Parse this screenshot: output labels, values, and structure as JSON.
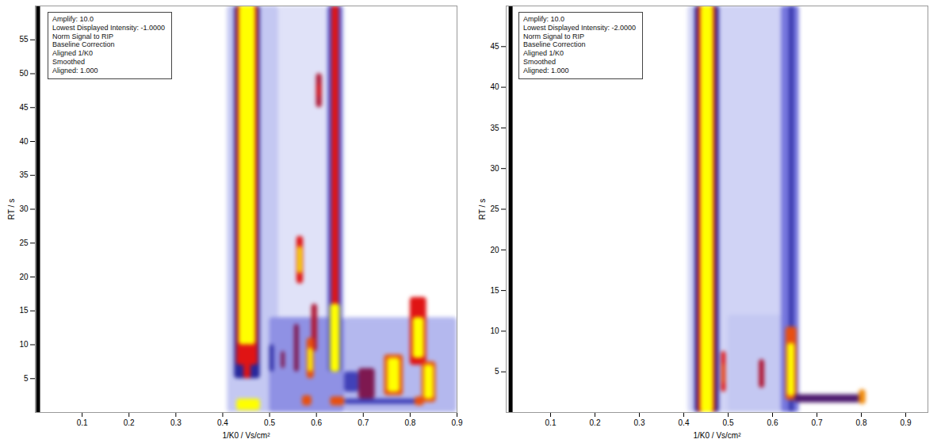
{
  "chart_data": [
    {
      "type": "heatmap",
      "x_label": "1/K0 / Vs/cm²",
      "y_label": "RT / s",
      "xlim": [
        0,
        0.9
      ],
      "xticks": [
        0.1,
        0.2,
        0.3,
        0.4,
        0.5,
        0.6,
        0.7,
        0.8,
        0.9
      ],
      "ylim": [
        0,
        60
      ],
      "yticks": [
        5,
        10,
        15,
        20,
        25,
        30,
        35,
        40,
        45,
        50,
        55
      ],
      "zlim": [
        0,
        1
      ],
      "annotation": [
        "Amplify: 10.0",
        "Lowest Displayed Intensity: -1.0000",
        "Norm Signal to RIP",
        "Baseline Correction",
        "Aligned 1/K0",
        "Smoothed",
        "Aligned: 1.000"
      ],
      "vlines": [
        {
          "x": 0.006,
          "color": "#000000"
        }
      ],
      "cells": [
        {
          "x0": 0.41,
          "x1": 0.52,
          "y0": 0,
          "y1": 60,
          "value": 0.15
        },
        {
          "x0": 0.52,
          "x1": 0.62,
          "y0": 0,
          "y1": 60,
          "value": 0.08
        },
        {
          "x0": 0.62,
          "x1": 0.66,
          "y0": 0,
          "y1": 60,
          "value": 0.1
        },
        {
          "x0": 0.66,
          "x1": 0.9,
          "y0": 0,
          "y1": 14,
          "value": 0.18
        },
        {
          "x0": 0.5,
          "x1": 0.66,
          "y0": 0,
          "y1": 14,
          "value": 0.25
        },
        {
          "x0": 0.425,
          "x1": 0.48,
          "y0": 5,
          "y1": 60,
          "value": 0.55
        },
        {
          "x0": 0.43,
          "x1": 0.475,
          "y0": 7,
          "y1": 60,
          "value": 0.8
        },
        {
          "x0": 0.435,
          "x1": 0.47,
          "y0": 10,
          "y1": 60,
          "value": 1
        },
        {
          "x0": 0.445,
          "x1": 0.46,
          "y0": 5,
          "y1": 10,
          "value": 0.8
        },
        {
          "x0": 0.43,
          "x1": 0.48,
          "y0": 0.3,
          "y1": 2,
          "value": 1
        },
        {
          "x0": 0.625,
          "x1": 0.655,
          "y0": 6,
          "y1": 60,
          "value": 0.4
        },
        {
          "x0": 0.633,
          "x1": 0.648,
          "y0": 6,
          "y1": 60,
          "value": 0.8
        },
        {
          "x0": 0.63,
          "x1": 0.65,
          "y0": 6,
          "y1": 16,
          "value": 1
        },
        {
          "x0": 0.6,
          "x1": 0.612,
          "y0": 45,
          "y1": 50,
          "value": 0.75
        },
        {
          "x0": 0.603,
          "x1": 0.609,
          "y0": 46.5,
          "y1": 48.5,
          "value": 0.8
        },
        {
          "x0": 0.558,
          "x1": 0.572,
          "y0": 19,
          "y1": 26,
          "value": 0.8
        },
        {
          "x0": 0.561,
          "x1": 0.569,
          "y0": 20.5,
          "y1": 24.5,
          "value": 1
        },
        {
          "x0": 0.59,
          "x1": 0.602,
          "y0": 9,
          "y1": 16,
          "value": 0.75
        },
        {
          "x0": 0.58,
          "x1": 0.595,
          "y0": 5,
          "y1": 11,
          "value": 0.85
        },
        {
          "x0": 0.583,
          "x1": 0.592,
          "y0": 6,
          "y1": 9.5,
          "value": 1
        },
        {
          "x0": 0.553,
          "x1": 0.563,
          "y0": 6,
          "y1": 13,
          "value": 0.7
        },
        {
          "x0": 0.525,
          "x1": 0.533,
          "y0": 6.5,
          "y1": 9,
          "value": 0.7
        },
        {
          "x0": 0.5,
          "x1": 0.51,
          "y0": 6,
          "y1": 10,
          "value": 0.5
        },
        {
          "x0": 0.57,
          "x1": 0.59,
          "y0": 1,
          "y1": 2.5,
          "value": 0.85
        },
        {
          "x0": 0.63,
          "x1": 0.66,
          "y0": 1,
          "y1": 2.3,
          "value": 0.85
        },
        {
          "x0": 0.66,
          "x1": 0.82,
          "y0": 1.2,
          "y1": 2,
          "value": 0.45
        },
        {
          "x0": 0.81,
          "x1": 0.83,
          "y0": 1,
          "y1": 2.3,
          "value": 0.85
        },
        {
          "x0": 0.66,
          "x1": 0.69,
          "y0": 3,
          "y1": 6,
          "value": 0.45
        },
        {
          "x0": 0.69,
          "x1": 0.725,
          "y0": 2,
          "y1": 6.5,
          "value": 0.7
        },
        {
          "x0": 0.745,
          "x1": 0.785,
          "y0": 2.5,
          "y1": 8.5,
          "value": 0.85
        },
        {
          "x0": 0.752,
          "x1": 0.778,
          "y0": 3,
          "y1": 8,
          "value": 1
        },
        {
          "x0": 0.8,
          "x1": 0.835,
          "y0": 7,
          "y1": 17,
          "value": 0.8
        },
        {
          "x0": 0.806,
          "x1": 0.83,
          "y0": 8,
          "y1": 14,
          "value": 1
        },
        {
          "x0": 0.825,
          "x1": 0.855,
          "y0": 1.5,
          "y1": 7.5,
          "value": 0.85
        },
        {
          "x0": 0.83,
          "x1": 0.85,
          "y0": 2,
          "y1": 7,
          "value": 1
        }
      ]
    },
    {
      "type": "heatmap",
      "x_label": "1/K0 / Vs/cm²",
      "y_label": "RT / s",
      "xlim": [
        0,
        0.95
      ],
      "xticks": [
        0.1,
        0.2,
        0.3,
        0.4,
        0.5,
        0.6,
        0.7,
        0.8,
        0.9
      ],
      "ylim": [
        0,
        50
      ],
      "yticks": [
        5,
        10,
        15,
        20,
        25,
        30,
        35,
        40,
        45
      ],
      "zlim": [
        0,
        1
      ],
      "annotation": [
        "Amplify: 10.0",
        "Lowest Displayed Intensity: -2.0000",
        "Norm Signal to RIP",
        "Baseline Correction",
        "Aligned 1/K0",
        "Smoothed",
        "Aligned: 1.000"
      ],
      "vlines": [
        {
          "x": 0.01,
          "color": "#000000"
        }
      ],
      "cells": [
        {
          "x0": 0.41,
          "x1": 0.63,
          "y0": 0,
          "y1": 50,
          "value": 0.12
        },
        {
          "x0": 0.5,
          "x1": 0.62,
          "y0": 0,
          "y1": 12,
          "value": 0.15
        },
        {
          "x0": 0.62,
          "x1": 0.66,
          "y0": 0,
          "y1": 50,
          "value": 0.3
        },
        {
          "x0": 0.425,
          "x1": 0.48,
          "y0": 0,
          "y1": 50,
          "value": 0.55
        },
        {
          "x0": 0.432,
          "x1": 0.472,
          "y0": 0,
          "y1": 50,
          "value": 0.8
        },
        {
          "x0": 0.438,
          "x1": 0.467,
          "y0": 0,
          "y1": 50,
          "value": 1
        },
        {
          "x0": 0.485,
          "x1": 0.495,
          "y0": 2.5,
          "y1": 7.5,
          "value": 0.8
        },
        {
          "x0": 0.487,
          "x1": 0.493,
          "y0": 3.5,
          "y1": 6,
          "value": 0.85
        },
        {
          "x0": 0.57,
          "x1": 0.582,
          "y0": 3,
          "y1": 6.5,
          "value": 0.75
        },
        {
          "x0": 0.638,
          "x1": 0.648,
          "y0": 0,
          "y1": 50,
          "value": 0.5
        },
        {
          "x0": 0.63,
          "x1": 0.655,
          "y0": 1.5,
          "y1": 10.5,
          "value": 0.85
        },
        {
          "x0": 0.634,
          "x1": 0.65,
          "y0": 2,
          "y1": 8.5,
          "value": 1
        },
        {
          "x0": 0.65,
          "x1": 0.8,
          "y0": 1.2,
          "y1": 2.2,
          "value": 0.65
        },
        {
          "x0": 0.795,
          "x1": 0.81,
          "y0": 1,
          "y1": 2.8,
          "value": 0.9
        }
      ]
    }
  ]
}
